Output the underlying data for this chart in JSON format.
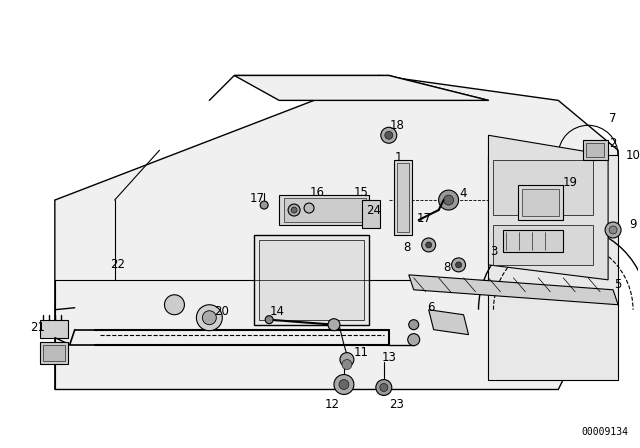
{
  "bg_color": "#ffffff",
  "line_color": "#000000",
  "fig_width": 6.4,
  "fig_height": 4.48,
  "dpi": 100,
  "watermark": "00009134",
  "watermark_fontsize": 7
}
